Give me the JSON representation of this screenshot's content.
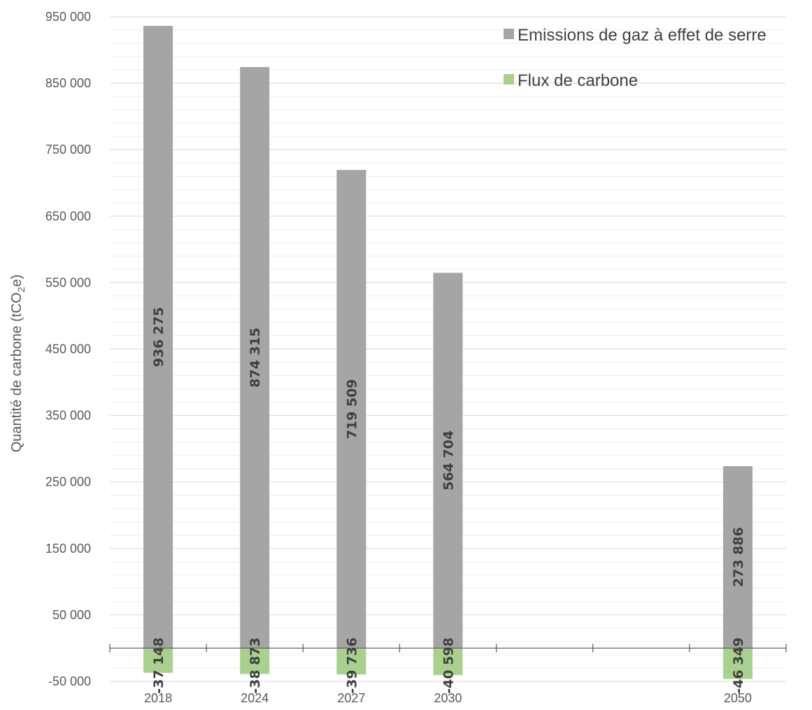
{
  "chart_data": {
    "type": "bar",
    "categories": [
      "2018",
      "2024",
      "2027",
      "2030",
      "",
      "",
      "2050"
    ],
    "series": [
      {
        "name": "Emissions de gaz à effet de serre",
        "color": "#a5a5a5",
        "values": [
          936275,
          874315,
          719509,
          564704,
          null,
          null,
          273886
        ],
        "labels": [
          "936 275",
          "874 315",
          "719 509",
          "564 704",
          "",
          "",
          "273 886"
        ]
      },
      {
        "name": "Flux de carbone",
        "color": "#a9d18e",
        "values": [
          -37148,
          -38873,
          -39736,
          -40598,
          null,
          null,
          -46349
        ],
        "labels": [
          "-37 148",
          "-38 873",
          "-39 736",
          "-40 598",
          "",
          "",
          "-46 349"
        ]
      }
    ],
    "ylabel": "Quantité de carbone (tCO",
    "ylabel_sub": "2",
    "ylabel_suffix": "e)",
    "ylim": [
      -50000,
      950000
    ],
    "yticks": [
      -50000,
      50000,
      150000,
      250000,
      350000,
      450000,
      550000,
      650000,
      750000,
      850000,
      950000
    ],
    "ytick_labels": [
      "-50 000",
      "50 000",
      "150 000",
      "250 000",
      "350 000",
      "450 000",
      "550 000",
      "650 000",
      "750 000",
      "850 000",
      "950 000"
    ],
    "minor_grid_step": 20000,
    "grid": true,
    "legend_position": "top-right"
  }
}
